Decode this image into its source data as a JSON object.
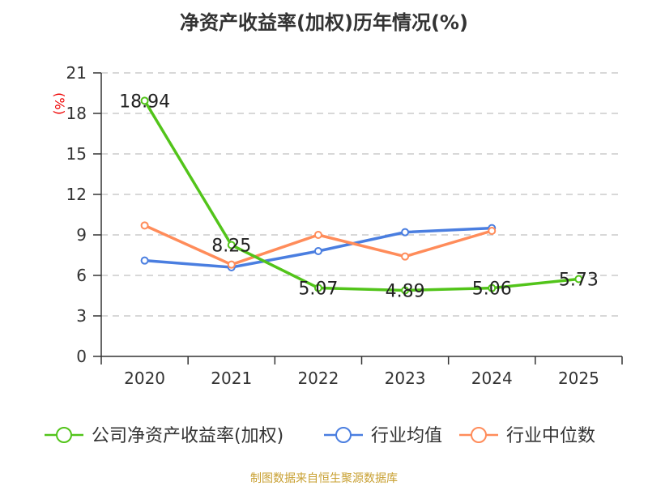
{
  "chart_data": {
    "type": "line",
    "title": "净资产收益率(加权)历年情况(%)",
    "ylabel": "(%)",
    "categories": [
      "2020",
      "2021",
      "2022",
      "2023",
      "2024",
      "2025"
    ],
    "ylim": [
      0,
      21
    ],
    "yticks": [
      0,
      3,
      6,
      9,
      12,
      15,
      18,
      21
    ],
    "grid": true,
    "legend": "bottom",
    "series": [
      {
        "name": "公司净资产收益率(加权)",
        "color": "#52c41a",
        "values": [
          18.94,
          8.25,
          5.07,
          4.89,
          5.06,
          5.73
        ],
        "labels": [
          "18.94",
          "8.25",
          "5.07",
          "4.89",
          "5.06",
          "5.73"
        ]
      },
      {
        "name": "行业均值",
        "color": "#4a7ee0",
        "values": [
          7.1,
          6.6,
          7.8,
          9.2,
          9.5,
          null
        ]
      },
      {
        "name": "行业中位数",
        "color": "#ff8c5a",
        "values": [
          9.7,
          6.8,
          9.0,
          7.4,
          9.3,
          null
        ]
      }
    ]
  },
  "source": "制图数据来自恒生聚源数据库"
}
